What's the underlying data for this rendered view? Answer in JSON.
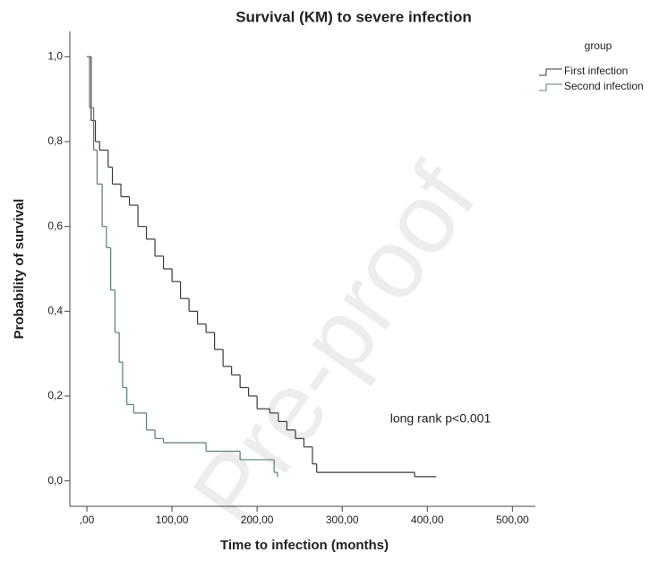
{
  "chart_data": {
    "type": "km",
    "title": "Survival (KM) to severe infection",
    "x_label": "Time to infection (months)",
    "y_label": "Probability of survival",
    "annotation": "long rank p<0.001",
    "watermark": "Pre-proof",
    "legend_title": "group",
    "legend_position": "right",
    "xlim": [
      -20,
      527
    ],
    "ylim": [
      -0.06,
      1.06
    ],
    "xticks": [
      {
        "value": 0,
        "label": ",00"
      },
      {
        "value": 100,
        "label": "100,00"
      },
      {
        "value": 200,
        "label": "200,00"
      },
      {
        "value": 300,
        "label": "300,00"
      },
      {
        "value": 400,
        "label": "400,00"
      },
      {
        "value": 500,
        "label": "500,00"
      }
    ],
    "yticks": [
      {
        "value": 0,
        "label": "0,0"
      },
      {
        "value": 0.2,
        "label": "0,2"
      },
      {
        "value": 0.4,
        "label": "0,4"
      },
      {
        "value": 0.6,
        "label": "0,6"
      },
      {
        "value": 0.8,
        "label": "0,8"
      },
      {
        "value": 1,
        "label": "1,0"
      }
    ],
    "series": [
      {
        "name": "First infection",
        "color": "#3a3a3a",
        "x": [
          0,
          5,
          10,
          15,
          25,
          30,
          40,
          50,
          60,
          70,
          80,
          90,
          100,
          110,
          120,
          130,
          140,
          150,
          160,
          170,
          180,
          190,
          200,
          215,
          225,
          235,
          245,
          255,
          265,
          270,
          385,
          410
        ],
        "values": [
          1.0,
          0.85,
          0.8,
          0.78,
          0.74,
          0.7,
          0.67,
          0.65,
          0.6,
          0.57,
          0.53,
          0.5,
          0.47,
          0.43,
          0.4,
          0.37,
          0.35,
          0.31,
          0.27,
          0.25,
          0.22,
          0.2,
          0.17,
          0.16,
          0.14,
          0.12,
          0.1,
          0.08,
          0.04,
          0.02,
          0.01,
          0.01
        ]
      },
      {
        "name": "Second infection",
        "color": "#5a7f73",
        "x": [
          0,
          3,
          8,
          12,
          18,
          23,
          28,
          33,
          38,
          42,
          47,
          55,
          70,
          80,
          90,
          140,
          180,
          220,
          224
        ],
        "values": [
          1.0,
          0.88,
          0.78,
          0.7,
          0.6,
          0.55,
          0.45,
          0.35,
          0.28,
          0.22,
          0.18,
          0.16,
          0.12,
          0.1,
          0.09,
          0.07,
          0.05,
          0.02,
          0.01
        ]
      }
    ]
  }
}
